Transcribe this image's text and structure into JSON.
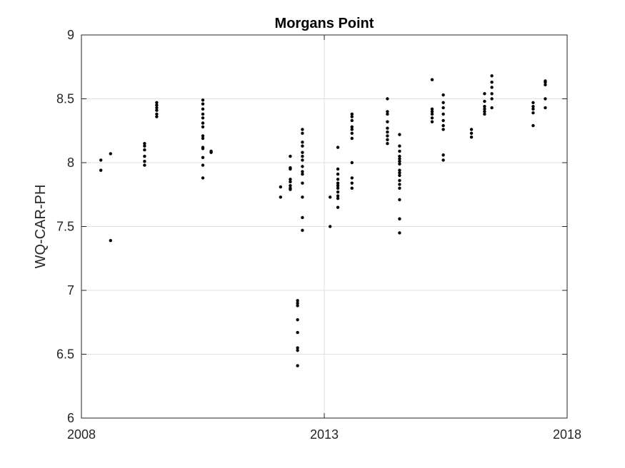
{
  "chart_data": {
    "type": "scatter",
    "title": "Morgans Point",
    "xlabel": "",
    "ylabel": "WQ-CAR-PH",
    "xlim": [
      2008,
      2018
    ],
    "ylim": [
      6,
      9
    ],
    "x_ticks": [
      2008,
      2013,
      2018
    ],
    "x_tick_labels": [
      "2008",
      "2013",
      "2018"
    ],
    "y_ticks": [
      6,
      6.5,
      7,
      7.5,
      8,
      8.5,
      9
    ],
    "y_tick_labels": [
      "6",
      "6.5",
      "7",
      "7.5",
      "8",
      "8.5",
      "9"
    ],
    "grid": true,
    "marker_color": "#000000",
    "series": [
      {
        "points": [
          [
            2008.4,
            8.02
          ],
          [
            2008.4,
            7.94
          ],
          [
            2008.6,
            8.07
          ],
          [
            2008.6,
            7.39
          ],
          [
            2009.3,
            8.15
          ],
          [
            2009.3,
            8.13
          ],
          [
            2009.3,
            8.1
          ],
          [
            2009.3,
            8.05
          ],
          [
            2009.3,
            8.01
          ],
          [
            2009.3,
            7.98
          ],
          [
            2009.55,
            8.47
          ],
          [
            2009.55,
            8.45
          ],
          [
            2009.55,
            8.43
          ],
          [
            2009.55,
            8.41
          ],
          [
            2009.55,
            8.38
          ],
          [
            2009.55,
            8.36
          ],
          [
            2010.5,
            8.49
          ],
          [
            2010.5,
            8.46
          ],
          [
            2010.5,
            8.42
          ],
          [
            2010.5,
            8.38
          ],
          [
            2010.5,
            8.35
          ],
          [
            2010.5,
            8.31
          ],
          [
            2010.5,
            8.28
          ],
          [
            2010.5,
            8.21
          ],
          [
            2010.5,
            8.19
          ],
          [
            2010.5,
            8.12
          ],
          [
            2010.5,
            8.11
          ],
          [
            2010.5,
            8.04
          ],
          [
            2010.5,
            7.98
          ],
          [
            2010.5,
            7.88
          ],
          [
            2010.67,
            8.09
          ],
          [
            2010.67,
            8.08
          ],
          [
            2012.1,
            7.81
          ],
          [
            2012.1,
            7.73
          ],
          [
            2012.3,
            8.05
          ],
          [
            2012.3,
            7.96
          ],
          [
            2012.3,
            7.95
          ],
          [
            2012.3,
            7.87
          ],
          [
            2012.3,
            7.85
          ],
          [
            2012.3,
            7.82
          ],
          [
            2012.3,
            7.8
          ],
          [
            2012.3,
            7.79
          ],
          [
            2012.45,
            6.92
          ],
          [
            2012.45,
            6.9
          ],
          [
            2012.45,
            6.88
          ],
          [
            2012.45,
            6.77
          ],
          [
            2012.45,
            6.67
          ],
          [
            2012.45,
            6.55
          ],
          [
            2012.45,
            6.53
          ],
          [
            2012.45,
            6.41
          ],
          [
            2012.55,
            8.26
          ],
          [
            2012.55,
            8.23
          ],
          [
            2012.55,
            8.16
          ],
          [
            2012.55,
            8.13
          ],
          [
            2012.55,
            8.08
          ],
          [
            2012.55,
            8.05
          ],
          [
            2012.55,
            8.02
          ],
          [
            2012.55,
            7.97
          ],
          [
            2012.55,
            7.93
          ],
          [
            2012.55,
            7.91
          ],
          [
            2012.55,
            7.84
          ],
          [
            2012.55,
            7.73
          ],
          [
            2012.55,
            7.57
          ],
          [
            2012.55,
            7.47
          ],
          [
            2013.12,
            7.73
          ],
          [
            2013.12,
            7.5
          ],
          [
            2013.28,
            8.12
          ],
          [
            2013.28,
            7.95
          ],
          [
            2013.28,
            7.91
          ],
          [
            2013.28,
            7.87
          ],
          [
            2013.28,
            7.84
          ],
          [
            2013.28,
            7.82
          ],
          [
            2013.28,
            7.8
          ],
          [
            2013.28,
            7.77
          ],
          [
            2013.28,
            7.74
          ],
          [
            2013.28,
            7.72
          ],
          [
            2013.28,
            7.65
          ],
          [
            2013.57,
            8.38
          ],
          [
            2013.57,
            8.36
          ],
          [
            2013.57,
            8.33
          ],
          [
            2013.57,
            8.28
          ],
          [
            2013.57,
            8.26
          ],
          [
            2013.57,
            8.23
          ],
          [
            2013.57,
            8.19
          ],
          [
            2013.57,
            8.0
          ],
          [
            2013.57,
            7.88
          ],
          [
            2013.57,
            7.84
          ],
          [
            2013.57,
            7.8
          ],
          [
            2014.3,
            8.5
          ],
          [
            2014.3,
            8.4
          ],
          [
            2014.3,
            8.38
          ],
          [
            2014.3,
            8.32
          ],
          [
            2014.3,
            8.27
          ],
          [
            2014.3,
            8.24
          ],
          [
            2014.3,
            8.21
          ],
          [
            2014.3,
            8.18
          ],
          [
            2014.3,
            8.15
          ],
          [
            2014.55,
            8.22
          ],
          [
            2014.55,
            8.13
          ],
          [
            2014.55,
            8.09
          ],
          [
            2014.55,
            8.05
          ],
          [
            2014.55,
            8.03
          ],
          [
            2014.55,
            8.01
          ],
          [
            2014.55,
            7.99
          ],
          [
            2014.55,
            7.94
          ],
          [
            2014.55,
            7.92
          ],
          [
            2014.55,
            7.9
          ],
          [
            2014.55,
            7.86
          ],
          [
            2014.55,
            7.83
          ],
          [
            2014.55,
            7.8
          ],
          [
            2014.55,
            7.71
          ],
          [
            2014.55,
            7.56
          ],
          [
            2014.55,
            7.45
          ],
          [
            2015.22,
            8.65
          ],
          [
            2015.22,
            8.42
          ],
          [
            2015.22,
            8.4
          ],
          [
            2015.22,
            8.38
          ],
          [
            2015.22,
            8.35
          ],
          [
            2015.22,
            8.32
          ],
          [
            2015.45,
            8.53
          ],
          [
            2015.45,
            8.47
          ],
          [
            2015.45,
            8.43
          ],
          [
            2015.45,
            8.38
          ],
          [
            2015.45,
            8.33
          ],
          [
            2015.45,
            8.29
          ],
          [
            2015.45,
            8.26
          ],
          [
            2015.45,
            8.06
          ],
          [
            2015.45,
            8.02
          ],
          [
            2016.03,
            8.26
          ],
          [
            2016.03,
            8.23
          ],
          [
            2016.03,
            8.2
          ],
          [
            2016.3,
            8.54
          ],
          [
            2016.3,
            8.48
          ],
          [
            2016.3,
            8.44
          ],
          [
            2016.3,
            8.42
          ],
          [
            2016.3,
            8.4
          ],
          [
            2016.3,
            8.38
          ],
          [
            2016.45,
            8.68
          ],
          [
            2016.45,
            8.63
          ],
          [
            2016.45,
            8.59
          ],
          [
            2016.45,
            8.54
          ],
          [
            2016.45,
            8.5
          ],
          [
            2016.45,
            8.43
          ],
          [
            2017.3,
            8.47
          ],
          [
            2017.3,
            8.44
          ],
          [
            2017.3,
            8.42
          ],
          [
            2017.3,
            8.39
          ],
          [
            2017.3,
            8.29
          ],
          [
            2017.55,
            8.64
          ],
          [
            2017.55,
            8.63
          ],
          [
            2017.55,
            8.61
          ],
          [
            2017.55,
            8.5
          ],
          [
            2017.55,
            8.43
          ]
        ]
      }
    ]
  }
}
